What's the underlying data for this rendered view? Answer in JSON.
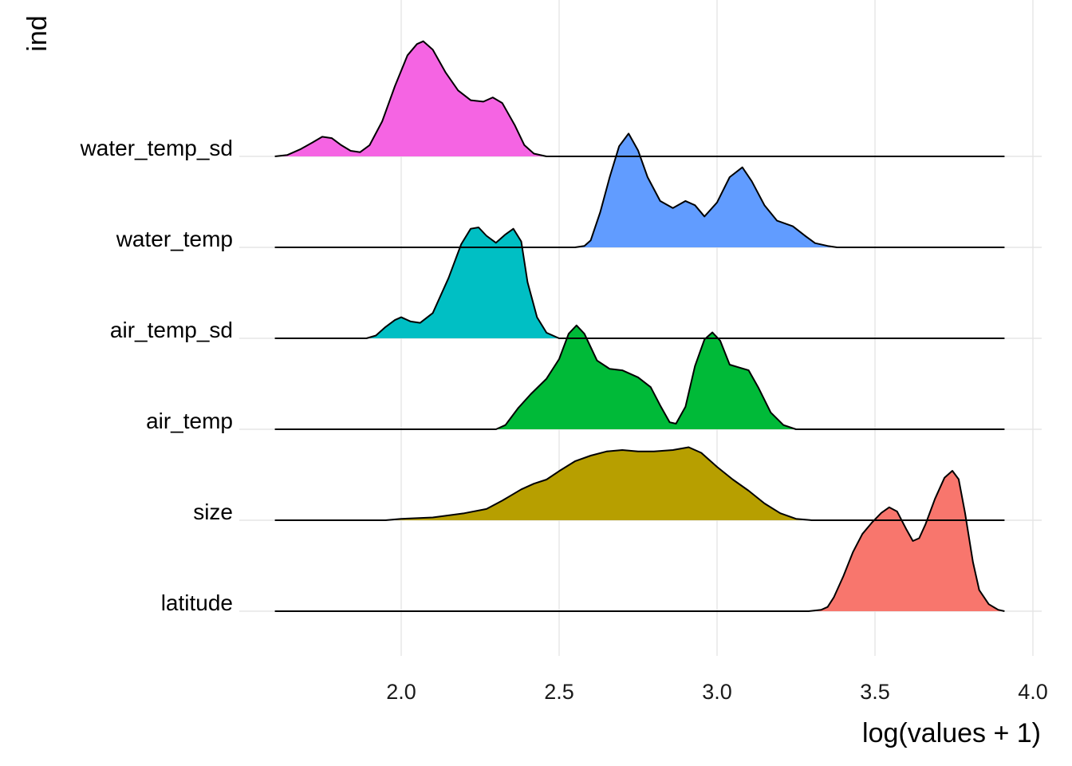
{
  "chart_data": {
    "type": "ridgeline",
    "xlabel": "log(values + 1)",
    "ylabel": "ind",
    "xlim": [
      1.6,
      3.91
    ],
    "xticks": [
      2.0,
      2.5,
      3.0,
      3.5,
      4.0
    ],
    "xtick_labels": [
      "2.0",
      "2.5",
      "3.0",
      "3.5",
      "4.0"
    ],
    "grid": true,
    "legend": "none",
    "categories": [
      "latitude",
      "size",
      "air_temp",
      "air_temp_sd",
      "water_temp",
      "water_temp_sd"
    ],
    "series": [
      {
        "category": "latitude",
        "color": "#F8766D",
        "points": [
          [
            1.6,
            0
          ],
          [
            3.29,
            0
          ],
          [
            3.33,
            0.01
          ],
          [
            3.35,
            0.03
          ],
          [
            3.37,
            0.1
          ],
          [
            3.4,
            0.25
          ],
          [
            3.43,
            0.42
          ],
          [
            3.46,
            0.55
          ],
          [
            3.49,
            0.63
          ],
          [
            3.52,
            0.7
          ],
          [
            3.545,
            0.74
          ],
          [
            3.57,
            0.71
          ],
          [
            3.6,
            0.58
          ],
          [
            3.62,
            0.5
          ],
          [
            3.64,
            0.52
          ],
          [
            3.66,
            0.62
          ],
          [
            3.69,
            0.8
          ],
          [
            3.72,
            0.95
          ],
          [
            3.745,
            1.0
          ],
          [
            3.765,
            0.94
          ],
          [
            3.785,
            0.7
          ],
          [
            3.81,
            0.35
          ],
          [
            3.83,
            0.15
          ],
          [
            3.86,
            0.05
          ],
          [
            3.89,
            0.01
          ],
          [
            3.91,
            0
          ]
        ]
      },
      {
        "category": "size",
        "color": "#B79F00",
        "points": [
          [
            1.6,
            0
          ],
          [
            1.95,
            0
          ],
          [
            2.0,
            0.01
          ],
          [
            2.1,
            0.02
          ],
          [
            2.2,
            0.05
          ],
          [
            2.27,
            0.08
          ],
          [
            2.32,
            0.14
          ],
          [
            2.38,
            0.22
          ],
          [
            2.42,
            0.26
          ],
          [
            2.46,
            0.29
          ],
          [
            2.5,
            0.35
          ],
          [
            2.55,
            0.42
          ],
          [
            2.6,
            0.46
          ],
          [
            2.65,
            0.49
          ],
          [
            2.7,
            0.5
          ],
          [
            2.75,
            0.49
          ],
          [
            2.8,
            0.49
          ],
          [
            2.86,
            0.5
          ],
          [
            2.91,
            0.52
          ],
          [
            2.95,
            0.48
          ],
          [
            3.0,
            0.38
          ],
          [
            3.05,
            0.29
          ],
          [
            3.1,
            0.21
          ],
          [
            3.15,
            0.12
          ],
          [
            3.2,
            0.05
          ],
          [
            3.25,
            0.01
          ],
          [
            3.3,
            0
          ],
          [
            3.91,
            0
          ]
        ]
      },
      {
        "category": "air_temp",
        "color": "#00BA38",
        "points": [
          [
            1.6,
            0
          ],
          [
            2.3,
            0
          ],
          [
            2.33,
            0.03
          ],
          [
            2.37,
            0.15
          ],
          [
            2.41,
            0.25
          ],
          [
            2.46,
            0.36
          ],
          [
            2.5,
            0.5
          ],
          [
            2.53,
            0.68
          ],
          [
            2.555,
            0.74
          ],
          [
            2.58,
            0.68
          ],
          [
            2.62,
            0.49
          ],
          [
            2.66,
            0.43
          ],
          [
            2.7,
            0.42
          ],
          [
            2.75,
            0.37
          ],
          [
            2.79,
            0.3
          ],
          [
            2.82,
            0.17
          ],
          [
            2.85,
            0.05
          ],
          [
            2.87,
            0.04
          ],
          [
            2.9,
            0.16
          ],
          [
            2.93,
            0.45
          ],
          [
            2.96,
            0.64
          ],
          [
            2.985,
            0.69
          ],
          [
            3.01,
            0.63
          ],
          [
            3.04,
            0.46
          ],
          [
            3.07,
            0.44
          ],
          [
            3.1,
            0.42
          ],
          [
            3.13,
            0.3
          ],
          [
            3.17,
            0.12
          ],
          [
            3.21,
            0.03
          ],
          [
            3.25,
            0
          ],
          [
            3.91,
            0
          ]
        ]
      },
      {
        "category": "air_temp_sd",
        "color": "#00BFC4",
        "points": [
          [
            1.6,
            0
          ],
          [
            1.89,
            0
          ],
          [
            1.92,
            0.02
          ],
          [
            1.95,
            0.08
          ],
          [
            1.98,
            0.13
          ],
          [
            2.0,
            0.15
          ],
          [
            2.03,
            0.12
          ],
          [
            2.06,
            0.11
          ],
          [
            2.1,
            0.18
          ],
          [
            2.15,
            0.43
          ],
          [
            2.19,
            0.67
          ],
          [
            2.22,
            0.78
          ],
          [
            2.245,
            0.79
          ],
          [
            2.27,
            0.73
          ],
          [
            2.3,
            0.68
          ],
          [
            2.33,
            0.74
          ],
          [
            2.355,
            0.78
          ],
          [
            2.38,
            0.69
          ],
          [
            2.4,
            0.4
          ],
          [
            2.43,
            0.15
          ],
          [
            2.46,
            0.04
          ],
          [
            2.5,
            0
          ],
          [
            3.91,
            0
          ]
        ]
      },
      {
        "category": "water_temp",
        "color": "#619CFF",
        "points": [
          [
            1.6,
            0
          ],
          [
            2.55,
            0
          ],
          [
            2.58,
            0.01
          ],
          [
            2.6,
            0.05
          ],
          [
            2.63,
            0.25
          ],
          [
            2.66,
            0.5
          ],
          [
            2.69,
            0.72
          ],
          [
            2.72,
            0.81
          ],
          [
            2.75,
            0.69
          ],
          [
            2.78,
            0.5
          ],
          [
            2.82,
            0.33
          ],
          [
            2.86,
            0.28
          ],
          [
            2.9,
            0.33
          ],
          [
            2.93,
            0.3
          ],
          [
            2.96,
            0.22
          ],
          [
            3.0,
            0.32
          ],
          [
            3.04,
            0.5
          ],
          [
            3.08,
            0.57
          ],
          [
            3.11,
            0.47
          ],
          [
            3.15,
            0.3
          ],
          [
            3.19,
            0.19
          ],
          [
            3.24,
            0.15
          ],
          [
            3.28,
            0.08
          ],
          [
            3.31,
            0.03
          ],
          [
            3.35,
            0.01
          ],
          [
            3.38,
            0
          ],
          [
            3.91,
            0
          ]
        ]
      },
      {
        "category": "water_temp_sd",
        "color": "#F564E3",
        "points": [
          [
            1.6,
            0
          ],
          [
            1.64,
            0.01
          ],
          [
            1.68,
            0.05
          ],
          [
            1.72,
            0.1
          ],
          [
            1.75,
            0.14
          ],
          [
            1.78,
            0.13
          ],
          [
            1.81,
            0.08
          ],
          [
            1.84,
            0.04
          ],
          [
            1.87,
            0.03
          ],
          [
            1.9,
            0.08
          ],
          [
            1.94,
            0.25
          ],
          [
            1.98,
            0.5
          ],
          [
            2.02,
            0.72
          ],
          [
            2.05,
            0.8
          ],
          [
            2.07,
            0.82
          ],
          [
            2.1,
            0.76
          ],
          [
            2.14,
            0.6
          ],
          [
            2.18,
            0.47
          ],
          [
            2.22,
            0.4
          ],
          [
            2.26,
            0.39
          ],
          [
            2.29,
            0.42
          ],
          [
            2.32,
            0.38
          ],
          [
            2.36,
            0.22
          ],
          [
            2.39,
            0.08
          ],
          [
            2.42,
            0.02
          ],
          [
            2.46,
            0
          ],
          [
            3.91,
            0
          ]
        ]
      }
    ]
  },
  "colors": {
    "grid": "#e5e5e5",
    "outline": "#000000"
  }
}
